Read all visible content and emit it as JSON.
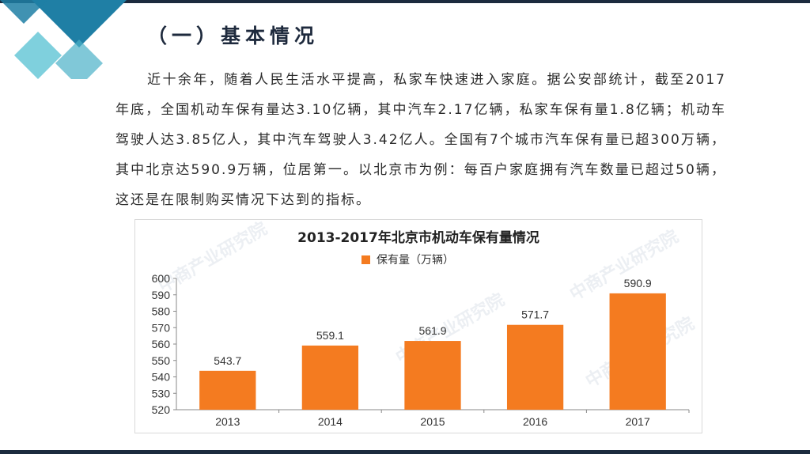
{
  "slide": {
    "title": "（一）基本情况",
    "paragraph": "近十余年，随着人民生活水平提高，私家车快速进入家庭。据公安部统计，截至2017年底，全国机动车保有量达3.10亿辆，其中汽车2.17亿辆，私家车保有量1.8亿辆；机动车驾驶人达3.85亿人，其中汽车驾驶人3.42亿人。全国有7个城市汽车保有量已超300万辆，其中北京达590.9万辆，位居第一。以北京市为例：每百户家庭拥有汽车数量已超过50辆，这还是在限制购买情况下达到的指标。",
    "watermark": "中商产业研究院"
  },
  "colors": {
    "bar": "#f47b20",
    "accent_dark": "#1f7fa5",
    "accent_light": "#7fd0dd",
    "dark_bar": "#1c2b3e"
  },
  "chart_data": {
    "type": "bar",
    "title": "2013-2017年北京市机动车保有量情况",
    "categories": [
      "2013",
      "2014",
      "2015",
      "2016",
      "2017"
    ],
    "series": [
      {
        "name": "保有量（万辆）",
        "values": [
          543.7,
          559.1,
          561.9,
          571.7,
          590.9
        ]
      }
    ],
    "data_labels": [
      "543.7",
      "559.1",
      "561.9",
      "571.7",
      "590.9"
    ],
    "ylim": [
      520,
      600
    ],
    "yticks": [
      520,
      530,
      540,
      550,
      560,
      570,
      580,
      590,
      600
    ],
    "xlabel": "",
    "ylabel": "",
    "grid": false,
    "legend": "top-center"
  }
}
